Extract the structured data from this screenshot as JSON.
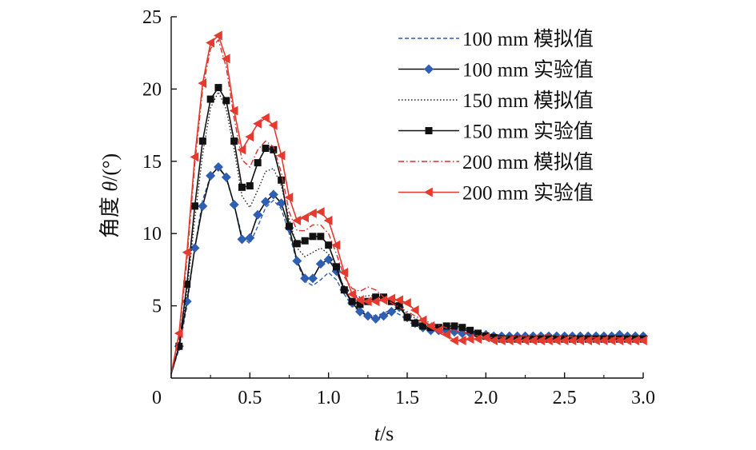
{
  "chart_data": {
    "type": "line",
    "title": "",
    "xlabel_italic": "t",
    "xlabel_unit": "/s",
    "ylabel_text": "角度 ",
    "ylabel_italic": "θ",
    "ylabel_unit": "/(°)",
    "xlim": [
      0,
      3.0
    ],
    "ylim": [
      0,
      25
    ],
    "x_ticks": [
      0,
      0.5,
      1.0,
      1.5,
      2.0,
      2.5,
      3.0
    ],
    "x_tick_labels": [
      "0",
      "0.5",
      "1.0",
      "1.5",
      "2.0",
      "2.5",
      "3.0"
    ],
    "y_ticks": [
      5,
      10,
      15,
      20,
      25
    ],
    "y_tick_labels": [
      "5",
      "10",
      "15",
      "20",
      "25"
    ],
    "legend_position": "top-right",
    "series": [
      {
        "name": "100 mm 模拟值",
        "color": "#2f5fb3",
        "style": "dashed",
        "marker": "none",
        "points": [
          [
            0,
            0.3
          ],
          [
            0.05,
            2.0
          ],
          [
            0.1,
            5.0
          ],
          [
            0.15,
            9.0
          ],
          [
            0.2,
            12.3
          ],
          [
            0.25,
            14.0
          ],
          [
            0.3,
            14.6
          ],
          [
            0.35,
            13.8
          ],
          [
            0.4,
            12.0
          ],
          [
            0.45,
            9.8
          ],
          [
            0.5,
            9.3
          ],
          [
            0.55,
            10.5
          ],
          [
            0.6,
            11.8
          ],
          [
            0.65,
            12.3
          ],
          [
            0.7,
            11.7
          ],
          [
            0.75,
            10.0
          ],
          [
            0.8,
            8.0
          ],
          [
            0.85,
            6.7
          ],
          [
            0.9,
            6.4
          ],
          [
            0.95,
            6.8
          ],
          [
            1.0,
            7.3
          ],
          [
            1.05,
            6.8
          ],
          [
            1.1,
            5.8
          ],
          [
            1.15,
            5.0
          ],
          [
            1.2,
            4.6
          ],
          [
            1.25,
            4.4
          ],
          [
            1.3,
            4.3
          ],
          [
            1.35,
            4.5
          ],
          [
            1.4,
            4.7
          ],
          [
            1.5,
            4.1
          ],
          [
            1.6,
            3.5
          ],
          [
            1.8,
            3.2
          ],
          [
            2.0,
            3.0
          ],
          [
            2.2,
            2.9
          ],
          [
            2.5,
            2.9
          ],
          [
            2.8,
            2.9
          ],
          [
            3.0,
            2.9
          ]
        ]
      },
      {
        "name": "100 mm 实验值",
        "color": "#2f5fb3",
        "line_color": "#111111",
        "style": "solid",
        "marker": "diamond",
        "points": [
          [
            0,
            0.3
          ],
          [
            0.05,
            2.2
          ],
          [
            0.1,
            5.3
          ],
          [
            0.15,
            9.0
          ],
          [
            0.2,
            11.9
          ],
          [
            0.25,
            14.0
          ],
          [
            0.3,
            14.6
          ],
          [
            0.35,
            13.9
          ],
          [
            0.4,
            12.0
          ],
          [
            0.45,
            9.6
          ],
          [
            0.5,
            9.7
          ],
          [
            0.55,
            11.3
          ],
          [
            0.6,
            12.2
          ],
          [
            0.65,
            12.7
          ],
          [
            0.7,
            12.1
          ],
          [
            0.75,
            10.4
          ],
          [
            0.8,
            8.1
          ],
          [
            0.85,
            6.9
          ],
          [
            0.9,
            6.9
          ],
          [
            0.95,
            7.9
          ],
          [
            1.0,
            8.2
          ],
          [
            1.05,
            7.4
          ],
          [
            1.1,
            6.1
          ],
          [
            1.15,
            5.2
          ],
          [
            1.2,
            4.6
          ],
          [
            1.25,
            4.3
          ],
          [
            1.3,
            4.1
          ],
          [
            1.35,
            4.3
          ],
          [
            1.4,
            4.6
          ],
          [
            1.45,
            4.9
          ],
          [
            1.5,
            4.2
          ],
          [
            1.55,
            3.8
          ],
          [
            1.6,
            3.5
          ],
          [
            1.65,
            3.3
          ],
          [
            1.7,
            3.3
          ],
          [
            1.75,
            3.3
          ],
          [
            1.8,
            3.2
          ],
          [
            1.85,
            3.1
          ],
          [
            1.9,
            3.1
          ],
          [
            1.95,
            3.0
          ],
          [
            2.0,
            3.0
          ],
          [
            2.05,
            2.9
          ],
          [
            2.1,
            2.9
          ],
          [
            2.15,
            2.9
          ],
          [
            2.2,
            2.9
          ],
          [
            2.25,
            2.9
          ],
          [
            2.3,
            2.9
          ],
          [
            2.35,
            2.9
          ],
          [
            2.4,
            2.9
          ],
          [
            2.45,
            2.9
          ],
          [
            2.5,
            2.9
          ],
          [
            2.55,
            2.9
          ],
          [
            2.6,
            2.9
          ],
          [
            2.65,
            2.9
          ],
          [
            2.7,
            2.9
          ],
          [
            2.75,
            2.9
          ],
          [
            2.8,
            2.9
          ],
          [
            2.85,
            3.0
          ],
          [
            2.9,
            2.9
          ],
          [
            2.95,
            2.9
          ],
          [
            3.0,
            2.9
          ]
        ]
      },
      {
        "name": "150 mm 模拟值",
        "color": "#222222",
        "style": "dotted",
        "marker": "none",
        "points": [
          [
            0,
            0.3
          ],
          [
            0.05,
            2.2
          ],
          [
            0.1,
            6.0
          ],
          [
            0.15,
            11.0
          ],
          [
            0.2,
            15.5
          ],
          [
            0.25,
            18.7
          ],
          [
            0.3,
            19.8
          ],
          [
            0.35,
            18.6
          ],
          [
            0.4,
            15.8
          ],
          [
            0.45,
            12.6
          ],
          [
            0.5,
            11.8
          ],
          [
            0.55,
            13.0
          ],
          [
            0.6,
            14.3
          ],
          [
            0.65,
            14.5
          ],
          [
            0.7,
            13.3
          ],
          [
            0.75,
            11.0
          ],
          [
            0.8,
            9.0
          ],
          [
            0.85,
            8.4
          ],
          [
            0.9,
            8.7
          ],
          [
            0.95,
            9.0
          ],
          [
            1.0,
            8.6
          ],
          [
            1.05,
            7.4
          ],
          [
            1.1,
            6.3
          ],
          [
            1.15,
            5.8
          ],
          [
            1.2,
            5.6
          ],
          [
            1.25,
            5.7
          ],
          [
            1.3,
            5.7
          ],
          [
            1.35,
            5.5
          ],
          [
            1.4,
            5.2
          ],
          [
            1.5,
            4.5
          ],
          [
            1.6,
            3.8
          ],
          [
            1.8,
            3.4
          ],
          [
            2.0,
            3.1
          ],
          [
            2.2,
            2.8
          ],
          [
            2.5,
            2.7
          ],
          [
            2.8,
            2.7
          ],
          [
            3.0,
            2.7
          ]
        ]
      },
      {
        "name": "150 mm 实验值",
        "color": "#111111",
        "style": "solid",
        "marker": "square",
        "points": [
          [
            0,
            0.3
          ],
          [
            0.05,
            2.2
          ],
          [
            0.1,
            6.5
          ],
          [
            0.15,
            11.9
          ],
          [
            0.2,
            16.4
          ],
          [
            0.25,
            19.3
          ],
          [
            0.3,
            20.1
          ],
          [
            0.35,
            19.2
          ],
          [
            0.4,
            16.4
          ],
          [
            0.45,
            13.2
          ],
          [
            0.5,
            13.3
          ],
          [
            0.55,
            14.9
          ],
          [
            0.6,
            15.9
          ],
          [
            0.65,
            15.8
          ],
          [
            0.7,
            13.7
          ],
          [
            0.75,
            10.5
          ],
          [
            0.8,
            9.3
          ],
          [
            0.85,
            9.5
          ],
          [
            0.9,
            9.8
          ],
          [
            0.95,
            9.8
          ],
          [
            1.0,
            9.2
          ],
          [
            1.05,
            7.7
          ],
          [
            1.1,
            6.1
          ],
          [
            1.15,
            5.3
          ],
          [
            1.2,
            5.1
          ],
          [
            1.25,
            5.3
          ],
          [
            1.3,
            5.6
          ],
          [
            1.35,
            5.6
          ],
          [
            1.4,
            5.3
          ],
          [
            1.45,
            5.0
          ],
          [
            1.5,
            4.2
          ],
          [
            1.55,
            3.8
          ],
          [
            1.6,
            3.6
          ],
          [
            1.65,
            3.5
          ],
          [
            1.7,
            3.5
          ],
          [
            1.75,
            3.6
          ],
          [
            1.8,
            3.6
          ],
          [
            1.85,
            3.5
          ],
          [
            1.9,
            3.3
          ],
          [
            1.95,
            3.1
          ],
          [
            2.0,
            2.9
          ],
          [
            2.05,
            2.8
          ],
          [
            2.1,
            2.7
          ],
          [
            2.15,
            2.7
          ],
          [
            2.2,
            2.7
          ],
          [
            2.25,
            2.7
          ],
          [
            2.3,
            2.7
          ],
          [
            2.35,
            2.7
          ],
          [
            2.4,
            2.7
          ],
          [
            2.45,
            2.7
          ],
          [
            2.5,
            2.7
          ],
          [
            2.55,
            2.7
          ],
          [
            2.6,
            2.7
          ],
          [
            2.65,
            2.7
          ],
          [
            2.7,
            2.7
          ],
          [
            2.75,
            2.7
          ],
          [
            2.8,
            2.7
          ],
          [
            2.85,
            2.7
          ],
          [
            2.9,
            2.7
          ],
          [
            2.95,
            2.7
          ],
          [
            3.0,
            2.7
          ]
        ]
      },
      {
        "name": "200 mm 模拟值",
        "color": "#d9302b",
        "style": "dashdot",
        "marker": "none",
        "points": [
          [
            0,
            0.3
          ],
          [
            0.05,
            2.8
          ],
          [
            0.1,
            8.2
          ],
          [
            0.15,
            14.8
          ],
          [
            0.2,
            20.0
          ],
          [
            0.25,
            22.8
          ],
          [
            0.3,
            23.4
          ],
          [
            0.35,
            21.5
          ],
          [
            0.4,
            18.0
          ],
          [
            0.45,
            15.1
          ],
          [
            0.5,
            14.6
          ],
          [
            0.55,
            15.8
          ],
          [
            0.6,
            16.4
          ],
          [
            0.65,
            16.0
          ],
          [
            0.7,
            14.2
          ],
          [
            0.75,
            11.5
          ],
          [
            0.8,
            10.2
          ],
          [
            0.85,
            10.2
          ],
          [
            0.9,
            10.6
          ],
          [
            0.95,
            10.6
          ],
          [
            1.0,
            10.0
          ],
          [
            1.05,
            8.6
          ],
          [
            1.1,
            7.0
          ],
          [
            1.15,
            6.2
          ],
          [
            1.2,
            6.0
          ],
          [
            1.25,
            6.3
          ],
          [
            1.3,
            6.1
          ],
          [
            1.35,
            5.6
          ],
          [
            1.4,
            5.2
          ],
          [
            1.5,
            4.6
          ],
          [
            1.6,
            4.0
          ],
          [
            1.8,
            3.3
          ],
          [
            2.0,
            2.8
          ],
          [
            2.2,
            2.9
          ],
          [
            2.4,
            3.0
          ],
          [
            2.6,
            2.8
          ],
          [
            2.8,
            2.8
          ],
          [
            3.0,
            2.7
          ]
        ]
      },
      {
        "name": "200 mm 实验值",
        "color": "#e53a2f",
        "style": "solid",
        "marker": "triangle-left",
        "points": [
          [
            0,
            0.3
          ],
          [
            0.05,
            3.1
          ],
          [
            0.1,
            8.7
          ],
          [
            0.15,
            15.3
          ],
          [
            0.2,
            20.4
          ],
          [
            0.25,
            23.2
          ],
          [
            0.3,
            23.7
          ],
          [
            0.35,
            22.1
          ],
          [
            0.4,
            18.5
          ],
          [
            0.45,
            15.8
          ],
          [
            0.5,
            16.7
          ],
          [
            0.55,
            17.6
          ],
          [
            0.6,
            18.0
          ],
          [
            0.65,
            17.5
          ],
          [
            0.7,
            15.4
          ],
          [
            0.75,
            12.5
          ],
          [
            0.8,
            10.9
          ],
          [
            0.85,
            11.1
          ],
          [
            0.9,
            11.4
          ],
          [
            0.95,
            11.5
          ],
          [
            1.0,
            10.9
          ],
          [
            1.05,
            9.2
          ],
          [
            1.1,
            7.3
          ],
          [
            1.15,
            5.8
          ],
          [
            1.2,
            5.4
          ],
          [
            1.25,
            5.3
          ],
          [
            1.3,
            5.3
          ],
          [
            1.35,
            5.4
          ],
          [
            1.4,
            5.5
          ],
          [
            1.45,
            5.4
          ],
          [
            1.5,
            5.2
          ],
          [
            1.55,
            4.7
          ],
          [
            1.6,
            4.0
          ],
          [
            1.65,
            3.6
          ],
          [
            1.7,
            3.3
          ],
          [
            1.75,
            3.0
          ],
          [
            1.8,
            2.6
          ],
          [
            1.85,
            2.6
          ],
          [
            1.9,
            2.7
          ],
          [
            1.95,
            2.7
          ],
          [
            2.0,
            2.8
          ],
          [
            2.05,
            2.6
          ],
          [
            2.1,
            2.6
          ],
          [
            2.15,
            2.6
          ],
          [
            2.2,
            2.6
          ],
          [
            2.25,
            2.6
          ],
          [
            2.3,
            2.6
          ],
          [
            2.35,
            2.6
          ],
          [
            2.4,
            2.6
          ],
          [
            2.45,
            2.6
          ],
          [
            2.5,
            2.6
          ],
          [
            2.55,
            2.6
          ],
          [
            2.6,
            2.6
          ],
          [
            2.65,
            2.6
          ],
          [
            2.7,
            2.6
          ],
          [
            2.75,
            2.6
          ],
          [
            2.8,
            2.6
          ],
          [
            2.85,
            2.6
          ],
          [
            2.9,
            2.6
          ],
          [
            2.95,
            2.6
          ],
          [
            3.0,
            2.6
          ]
        ]
      }
    ]
  }
}
